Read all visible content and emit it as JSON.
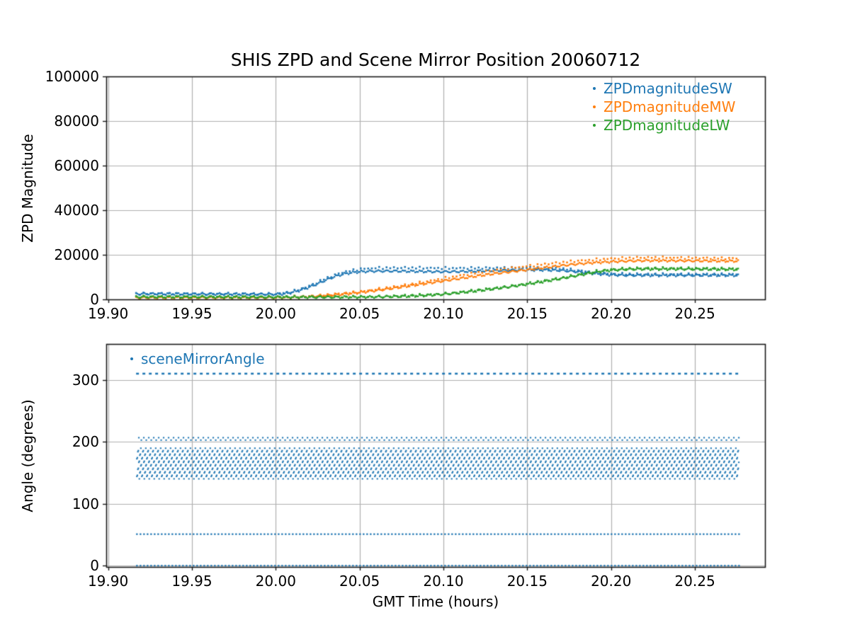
{
  "figure": {
    "title": "SHIS ZPD and Scene Mirror Position 20060712",
    "background_color": "#ffffff",
    "grid_color": "#b0b0b0",
    "spine_color": "#1a1a1a",
    "text_color": "#000000"
  },
  "chart_data": [
    {
      "type": "scatter",
      "name": "zpd-magnitude-plot",
      "title": "SHIS ZPD and Scene Mirror Position 20060712",
      "xlabel": "",
      "ylabel": "ZPD Magnitude",
      "xlim": [
        19.8989,
        20.2918
      ],
      "ylim": [
        0,
        100000
      ],
      "xtick_values": [
        19.9,
        19.95,
        20.0,
        20.05,
        20.1,
        20.15,
        20.2,
        20.25
      ],
      "xtick_labels": [
        "19.90",
        "19.95",
        "20.00",
        "20.05",
        "20.10",
        "20.15",
        "20.20",
        "20.25"
      ],
      "ytick_values": [
        0,
        20000,
        40000,
        60000,
        80000,
        100000
      ],
      "ytick_labels": [
        "0",
        "20000",
        "40000",
        "60000",
        "80000",
        "100000"
      ],
      "grid": true,
      "legend": {
        "position": "upper-right",
        "entries": [
          {
            "label": "ZPDmagnitudeSW",
            "color": "#1f77b4"
          },
          {
            "label": "ZPDmagnitudeMW",
            "color": "#ff7f0e"
          },
          {
            "label": "ZPDmagnitudeLW",
            "color": "#2ca02c"
          }
        ]
      },
      "x_range_of_data": [
        19.9167,
        20.276
      ],
      "series": [
        {
          "name": "ZPDmagnitudeSW",
          "color": "#1f77b4",
          "style": "dense",
          "points": [
            [
              19.9167,
              2500
            ],
            [
              19.93,
              2500
            ],
            [
              19.95,
              2400
            ],
            [
              19.97,
              2400
            ],
            [
              19.99,
              2300
            ],
            [
              20.0,
              2300
            ],
            [
              20.005,
              2500
            ],
            [
              20.01,
              3200
            ],
            [
              20.015,
              4200
            ],
            [
              20.02,
              5500
            ],
            [
              20.025,
              7000
            ],
            [
              20.03,
              8700
            ],
            [
              20.035,
              10200
            ],
            [
              20.04,
              11300
            ],
            [
              20.045,
              12000
            ],
            [
              20.05,
              12400
            ],
            [
              20.055,
              12600
            ],
            [
              20.06,
              12700
            ],
            [
              20.07,
              12700
            ],
            [
              20.08,
              12600
            ],
            [
              20.09,
              12500
            ],
            [
              20.1,
              12400
            ],
            [
              20.11,
              12500
            ],
            [
              20.12,
              12700
            ],
            [
              20.13,
              12900
            ],
            [
              20.14,
              13100
            ],
            [
              20.15,
              13200
            ],
            [
              20.16,
              13200
            ],
            [
              20.17,
              13000
            ],
            [
              20.18,
              12400
            ],
            [
              20.19,
              11600
            ],
            [
              20.2,
              11000
            ],
            [
              20.21,
              10800
            ],
            [
              20.22,
              10800
            ],
            [
              20.24,
              10800
            ],
            [
              20.26,
              10800
            ],
            [
              20.276,
              10800
            ]
          ]
        },
        {
          "name": "ZPDmagnitudeSW-upper",
          "color": "#1f77b4",
          "style": "sparse",
          "points": [
            [
              19.9167,
              2600
            ],
            [
              19.95,
              2500
            ],
            [
              20.0,
              2400
            ],
            [
              20.01,
              3500
            ],
            [
              20.02,
              6000
            ],
            [
              20.03,
              9500
            ],
            [
              20.04,
              12200
            ],
            [
              20.05,
              13600
            ],
            [
              20.06,
              14100
            ],
            [
              20.08,
              14200
            ],
            [
              20.1,
              14000
            ],
            [
              20.13,
              14100
            ],
            [
              20.15,
              14200
            ],
            [
              20.17,
              13900
            ],
            [
              20.18,
              13000
            ],
            [
              20.19,
              12200
            ],
            [
              20.2,
              11500
            ],
            [
              20.22,
              11300
            ],
            [
              20.25,
              11300
            ],
            [
              20.276,
              11300
            ]
          ]
        },
        {
          "name": "ZPDmagnitudeMW",
          "color": "#ff7f0e",
          "style": "dense",
          "points": [
            [
              19.9167,
              800
            ],
            [
              19.95,
              800
            ],
            [
              20.0,
              800
            ],
            [
              20.01,
              900
            ],
            [
              20.02,
              1200
            ],
            [
              20.03,
              1700
            ],
            [
              20.04,
              2300
            ],
            [
              20.05,
              3100
            ],
            [
              20.06,
              4000
            ],
            [
              20.07,
              5000
            ],
            [
              20.08,
              6100
            ],
            [
              20.09,
              7200
            ],
            [
              20.1,
              8300
            ],
            [
              20.11,
              9400
            ],
            [
              20.12,
              10500
            ],
            [
              20.13,
              11500
            ],
            [
              20.14,
              12400
            ],
            [
              20.15,
              13300
            ],
            [
              20.16,
              14200
            ],
            [
              20.17,
              15100
            ],
            [
              20.18,
              15900
            ],
            [
              20.19,
              16500
            ],
            [
              20.2,
              16900
            ],
            [
              20.21,
              17200
            ],
            [
              20.22,
              17400
            ],
            [
              20.23,
              17400
            ],
            [
              20.25,
              17300
            ],
            [
              20.276,
              17200
            ]
          ]
        },
        {
          "name": "ZPDmagnitudeMW-upper",
          "color": "#ff7f0e",
          "style": "sparse",
          "points": [
            [
              19.9167,
              900
            ],
            [
              20.0,
              900
            ],
            [
              20.02,
              1300
            ],
            [
              20.05,
              3400
            ],
            [
              20.08,
              6700
            ],
            [
              20.1,
              9400
            ],
            [
              20.12,
              12000
            ],
            [
              20.14,
              14000
            ],
            [
              20.16,
              15800
            ],
            [
              20.18,
              17300
            ],
            [
              20.2,
              18300
            ],
            [
              20.21,
              18600
            ],
            [
              20.22,
              18800
            ],
            [
              20.24,
              18700
            ],
            [
              20.26,
              18500
            ],
            [
              20.276,
              18400
            ]
          ]
        },
        {
          "name": "ZPDmagnitudeLW",
          "color": "#2ca02c",
          "style": "dense",
          "points": [
            [
              19.9167,
              1100
            ],
            [
              19.95,
              1100
            ],
            [
              20.0,
              1000
            ],
            [
              20.04,
              1000
            ],
            [
              20.06,
              1100
            ],
            [
              20.08,
              1400
            ],
            [
              20.09,
              1800
            ],
            [
              20.1,
              2300
            ],
            [
              20.11,
              3000
            ],
            [
              20.12,
              3800
            ],
            [
              20.13,
              4700
            ],
            [
              20.14,
              5700
            ],
            [
              20.15,
              6800
            ],
            [
              20.16,
              8000
            ],
            [
              20.17,
              9300
            ],
            [
              20.18,
              10700
            ],
            [
              20.19,
              12100
            ],
            [
              20.195,
              12700
            ],
            [
              20.2,
              13100
            ],
            [
              20.21,
              13500
            ],
            [
              20.22,
              13600
            ],
            [
              20.24,
              13600
            ],
            [
              20.26,
              13500
            ],
            [
              20.276,
              13400
            ]
          ]
        },
        {
          "name": "ZPDmagnitudeLW-upper",
          "color": "#2ca02c",
          "style": "sparse",
          "points": [
            [
              19.9167,
              1200
            ],
            [
              20.0,
              1100
            ],
            [
              20.06,
              1200
            ],
            [
              20.1,
              2400
            ],
            [
              20.14,
              5900
            ],
            [
              20.17,
              9600
            ],
            [
              20.19,
              12500
            ],
            [
              20.2,
              13400
            ],
            [
              20.21,
              13900
            ],
            [
              20.22,
              14000
            ],
            [
              20.24,
              14000
            ],
            [
              20.276,
              13800
            ]
          ]
        }
      ]
    },
    {
      "type": "scatter",
      "name": "scene-mirror-plot",
      "title": "",
      "xlabel": "GMT Time (hours)",
      "ylabel": "Angle (degrees)",
      "xlim": [
        19.8989,
        20.2918
      ],
      "ylim": [
        -2,
        358.5
      ],
      "xtick_values": [
        19.9,
        19.95,
        20.0,
        20.05,
        20.1,
        20.15,
        20.2,
        20.25
      ],
      "xtick_labels": [
        "19.90",
        "19.95",
        "20.00",
        "20.05",
        "20.10",
        "20.15",
        "20.20",
        "20.25"
      ],
      "ytick_values": [
        0,
        100,
        200,
        300
      ],
      "ytick_labels": [
        "0",
        "100",
        "200",
        "300"
      ],
      "grid": true,
      "legend": {
        "position": "upper-left",
        "entries": [
          {
            "label": "sceneMirrorAngle",
            "color": "#1f77b4"
          }
        ]
      },
      "x_range_of_data": [
        19.9167,
        20.276
      ],
      "series": [
        {
          "name": "sceneMirrorAngle",
          "color": "#1f77b4",
          "style": "angle-rows",
          "angle_rows": [
            {
              "angle": 310.5,
              "row_style": "dash"
            },
            {
              "angle": 205.0,
              "row_style": "pair"
            },
            {
              "angle": 188.0,
              "row_style": "pair"
            },
            {
              "angle": 182.3,
              "row_style": "pair"
            },
            {
              "angle": 176.6,
              "row_style": "pair"
            },
            {
              "angle": 170.9,
              "row_style": "pair"
            },
            {
              "angle": 165.2,
              "row_style": "pair"
            },
            {
              "angle": 159.5,
              "row_style": "pair"
            },
            {
              "angle": 153.8,
              "row_style": "pair"
            },
            {
              "angle": 148.1,
              "row_style": "pair"
            },
            {
              "angle": 142.4,
              "row_style": "pair"
            },
            {
              "angle": 51.0,
              "row_style": "dot"
            },
            {
              "angle": 0.0,
              "row_style": "dot"
            }
          ]
        }
      ]
    }
  ]
}
